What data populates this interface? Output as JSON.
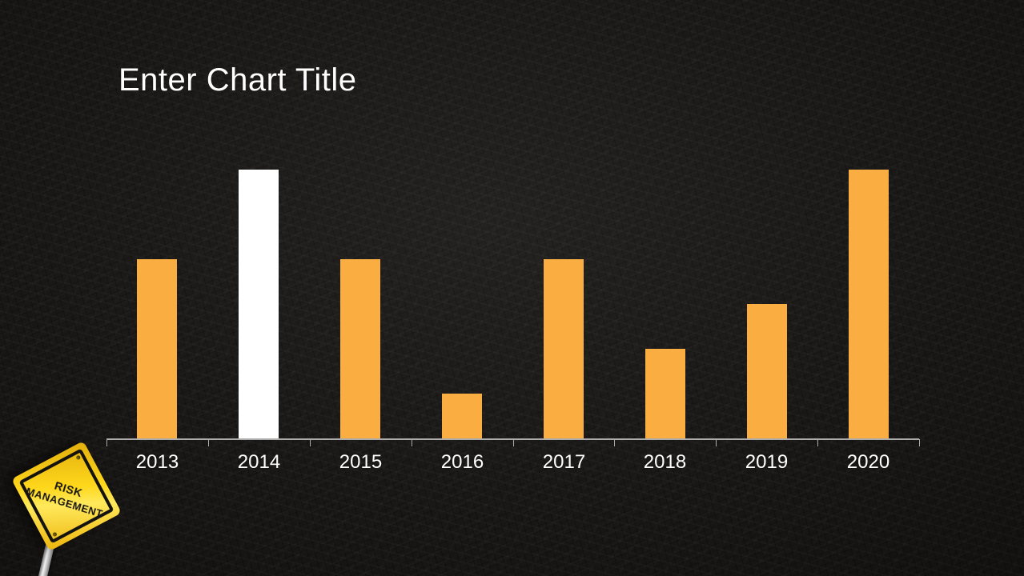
{
  "slide": {
    "title": "Enter Chart Title"
  },
  "chart_data": {
    "type": "bar",
    "title": "Enter Chart Title",
    "categories": [
      "2013",
      "2014",
      "2015",
      "2016",
      "2017",
      "2018",
      "2019",
      "2020"
    ],
    "values": [
      4,
      6,
      4,
      1,
      4,
      2,
      3,
      6
    ],
    "xlabel": "",
    "ylabel": "",
    "ylim": [
      0,
      6
    ],
    "grid": false,
    "legend": false,
    "bar_color": "#FAAE42",
    "highlight_index": 1,
    "highlight_color": "#FFFFFF",
    "axis_color": "#ABABAB",
    "label_color": "#FFFFFF"
  },
  "sign": {
    "line1": "RISK",
    "line2": "MANAGEMENT",
    "sign_color": "#FFD81C",
    "text_color": "#161410"
  }
}
